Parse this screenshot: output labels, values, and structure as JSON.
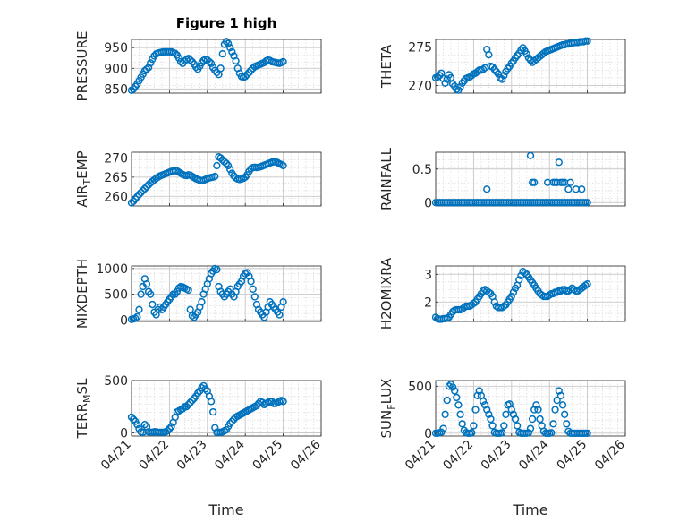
{
  "chart_data": [
    {
      "type": "scatter",
      "title": "Figure 1 high",
      "ylabel": "PRESSURE",
      "xlim": [
        0,
        5
      ],
      "ylim": [
        840,
        970
      ],
      "yticks": [
        850,
        900,
        950
      ],
      "x": [
        0.0,
        0.05,
        0.1,
        0.15,
        0.2,
        0.25,
        0.3,
        0.35,
        0.4,
        0.45,
        0.5,
        0.55,
        0.6,
        0.65,
        0.7,
        0.75,
        0.8,
        0.85,
        0.9,
        0.95,
        1.0,
        1.05,
        1.1,
        1.15,
        1.2,
        1.25,
        1.3,
        1.35,
        1.4,
        1.45,
        1.5,
        1.55,
        1.6,
        1.65,
        1.7,
        1.75,
        1.8,
        1.85,
        1.9,
        1.95,
        2.0,
        2.05,
        2.1,
        2.15,
        2.2,
        2.25,
        2.3,
        2.35,
        2.4,
        2.45,
        2.5,
        2.55,
        2.6,
        2.65,
        2.7,
        2.75,
        2.8,
        2.85,
        2.9,
        2.95,
        3.0,
        3.05,
        3.1,
        3.15,
        3.2,
        3.25,
        3.3,
        3.35,
        3.4,
        3.45,
        3.5,
        3.55,
        3.6,
        3.65,
        3.7,
        3.75,
        3.8,
        3.85,
        3.9,
        3.95,
        4.0
      ],
      "y": [
        847,
        850,
        856,
        862,
        870,
        878,
        886,
        894,
        898,
        902,
        913,
        922,
        930,
        935,
        937,
        938,
        939,
        940,
        940,
        940,
        940,
        940,
        938,
        936,
        932,
        925,
        916,
        912,
        918,
        921,
        924,
        920,
        916,
        910,
        903,
        898,
        905,
        913,
        919,
        922,
        920,
        916,
        912,
        902,
        895,
        890,
        885,
        900,
        935,
        958,
        965,
        960,
        950,
        940,
        930,
        918,
        900,
        888,
        880,
        878,
        880,
        885,
        890,
        895,
        900,
        904,
        906,
        908,
        910,
        912,
        914,
        918,
        920,
        919,
        916,
        915,
        914,
        913,
        912,
        914,
        916
      ]
    },
    {
      "type": "scatter",
      "ylabel": "THETA",
      "xlim": [
        0,
        5
      ],
      "ylim": [
        269,
        276
      ],
      "yticks": [
        270,
        275
      ],
      "x": [
        0.0,
        0.05,
        0.1,
        0.15,
        0.2,
        0.25,
        0.3,
        0.35,
        0.4,
        0.45,
        0.5,
        0.55,
        0.6,
        0.65,
        0.7,
        0.75,
        0.8,
        0.85,
        0.9,
        0.95,
        1.0,
        1.05,
        1.1,
        1.15,
        1.2,
        1.25,
        1.3,
        1.35,
        1.4,
        1.45,
        1.5,
        1.55,
        1.6,
        1.65,
        1.7,
        1.75,
        1.8,
        1.85,
        1.9,
        1.95,
        2.0,
        2.05,
        2.1,
        2.15,
        2.2,
        2.25,
        2.3,
        2.35,
        2.4,
        2.45,
        2.5,
        2.55,
        2.6,
        2.65,
        2.7,
        2.75,
        2.8,
        2.85,
        2.9,
        2.95,
        3.0,
        3.05,
        3.1,
        3.15,
        3.2,
        3.25,
        3.3,
        3.35,
        3.4,
        3.45,
        3.5,
        3.55,
        3.6,
        3.65,
        3.7,
        3.75,
        3.8,
        3.85,
        3.9,
        3.95,
        4.0
      ],
      "y": [
        271.0,
        271.1,
        271.3,
        271.6,
        270.9,
        270.3,
        270.8,
        271.4,
        271.0,
        270.2,
        269.9,
        269.5,
        269.4,
        269.8,
        270.3,
        270.6,
        270.9,
        271.0,
        271.1,
        271.3,
        271.5,
        271.6,
        271.8,
        272.0,
        272.0,
        272.1,
        272.3,
        274.7,
        274.0,
        272.5,
        272.4,
        272.1,
        271.8,
        271.5,
        271.0,
        270.8,
        271.3,
        271.8,
        272.2,
        272.5,
        272.9,
        273.2,
        273.6,
        273.9,
        274.2,
        274.6,
        274.9,
        274.5,
        274.1,
        273.6,
        273.3,
        273.0,
        273.2,
        273.4,
        273.6,
        273.8,
        274.0,
        274.2,
        274.4,
        274.5,
        274.6,
        274.7,
        274.8,
        274.9,
        275.0,
        275.1,
        275.2,
        275.3,
        275.3,
        275.4,
        275.4,
        275.5,
        275.5,
        275.6,
        275.6,
        275.6,
        275.7,
        275.7,
        275.7,
        275.8,
        275.8
      ]
    },
    {
      "type": "scatter",
      "ylabel": "AIR_TEMP",
      "xlim": [
        0,
        5
      ],
      "ylim": [
        257.5,
        271.5
      ],
      "yticks": [
        260,
        265,
        270
      ],
      "x": [
        0.0,
        0.05,
        0.1,
        0.15,
        0.2,
        0.25,
        0.3,
        0.35,
        0.4,
        0.45,
        0.5,
        0.55,
        0.6,
        0.65,
        0.7,
        0.75,
        0.8,
        0.85,
        0.9,
        0.95,
        1.0,
        1.05,
        1.1,
        1.15,
        1.2,
        1.25,
        1.3,
        1.35,
        1.4,
        1.45,
        1.5,
        1.55,
        1.6,
        1.65,
        1.7,
        1.75,
        1.8,
        1.85,
        1.9,
        1.95,
        2.0,
        2.05,
        2.1,
        2.15,
        2.2,
        2.25,
        2.3,
        2.35,
        2.4,
        2.45,
        2.5,
        2.55,
        2.6,
        2.65,
        2.7,
        2.75,
        2.8,
        2.85,
        2.9,
        2.95,
        3.0,
        3.05,
        3.1,
        3.15,
        3.2,
        3.25,
        3.3,
        3.35,
        3.4,
        3.45,
        3.5,
        3.55,
        3.6,
        3.65,
        3.7,
        3.75,
        3.8,
        3.85,
        3.9,
        3.95,
        4.0
      ],
      "y": [
        258.3,
        258.7,
        259.3,
        259.9,
        260.5,
        261.0,
        261.5,
        262.0,
        262.5,
        263.0,
        263.5,
        263.9,
        264.3,
        264.7,
        265.0,
        265.3,
        265.5,
        265.7,
        265.9,
        266.1,
        266.3,
        266.5,
        266.6,
        266.7,
        266.6,
        266.3,
        266.0,
        265.7,
        265.5,
        265.4,
        265.6,
        265.5,
        265.2,
        264.9,
        264.6,
        264.4,
        264.2,
        264.1,
        264.2,
        264.4,
        264.6,
        264.8,
        264.9,
        265.0,
        265.2,
        268.0,
        270.3,
        270.0,
        269.5,
        269.0,
        268.6,
        268.0,
        267.0,
        266.0,
        265.3,
        264.8,
        264.5,
        264.4,
        264.5,
        264.7,
        265.0,
        265.6,
        266.5,
        267.2,
        267.5,
        267.6,
        267.5,
        267.6,
        267.7,
        267.9,
        268.1,
        268.3,
        268.5,
        268.7,
        268.9,
        269.0,
        269.0,
        268.8,
        268.5,
        268.3,
        268.0
      ]
    },
    {
      "type": "scatter",
      "ylabel": "RAINFALL",
      "xlim": [
        0,
        5
      ],
      "ylim": [
        -0.05,
        0.75
      ],
      "yticks": [
        0,
        0.5
      ],
      "zeros_x": [
        0.0,
        0.05,
        0.1,
        0.15,
        0.2,
        0.25,
        0.3,
        0.35,
        0.4,
        0.45,
        0.5,
        0.55,
        0.6,
        0.65,
        0.7,
        0.75,
        0.8,
        0.85,
        0.9,
        0.95,
        1.0,
        1.05,
        1.1,
        1.15,
        1.2,
        1.25,
        1.3,
        1.35,
        1.4,
        1.45,
        1.5,
        1.55,
        1.6,
        1.65,
        1.7,
        1.75,
        1.8,
        1.85,
        1.9,
        1.95,
        2.0,
        2.05,
        2.1,
        2.15,
        2.2,
        2.25,
        2.3,
        2.35,
        2.4,
        2.45,
        2.5,
        2.55,
        2.6,
        2.65,
        2.7,
        2.75,
        2.8,
        2.85,
        2.9,
        2.95,
        3.0,
        3.05,
        3.1,
        3.15,
        3.2,
        3.25,
        3.3,
        3.35,
        3.4,
        3.45,
        3.5,
        3.55,
        3.6,
        3.65,
        3.7,
        3.75,
        3.8,
        3.85,
        3.9,
        3.95,
        4.0
      ],
      "x": [
        1.35,
        2.5,
        2.55,
        2.6,
        2.95,
        3.1,
        3.15,
        3.2,
        3.25,
        3.3,
        3.35,
        3.4,
        3.5,
        3.55,
        3.7,
        3.85
      ],
      "y": [
        0.2,
        0.7,
        0.3,
        0.3,
        0.3,
        0.3,
        0.3,
        0.3,
        0.6,
        0.3,
        0.3,
        0.3,
        0.2,
        0.3,
        0.2,
        0.2
      ]
    },
    {
      "type": "scatter",
      "ylabel": "MIXDEPTH",
      "xlim": [
        0,
        5
      ],
      "ylim": [
        -30,
        1050
      ],
      "yticks": [
        0,
        500,
        1000
      ],
      "x": [
        0.0,
        0.05,
        0.1,
        0.15,
        0.2,
        0.25,
        0.3,
        0.35,
        0.4,
        0.45,
        0.5,
        0.55,
        0.6,
        0.65,
        0.7,
        0.75,
        0.8,
        0.85,
        0.9,
        0.95,
        1.0,
        1.05,
        1.1,
        1.15,
        1.2,
        1.25,
        1.3,
        1.35,
        1.4,
        1.45,
        1.5,
        1.55,
        1.6,
        1.65,
        1.7,
        1.75,
        1.8,
        1.85,
        1.9,
        1.95,
        2.0,
        2.05,
        2.1,
        2.15,
        2.2,
        2.25,
        2.3,
        2.35,
        2.4,
        2.45,
        2.5,
        2.55,
        2.6,
        2.65,
        2.7,
        2.75,
        2.8,
        2.85,
        2.9,
        2.95,
        3.0,
        3.05,
        3.1,
        3.15,
        3.2,
        3.25,
        3.3,
        3.35,
        3.4,
        3.45,
        3.5,
        3.55,
        3.6,
        3.65,
        3.7,
        3.75,
        3.8,
        3.85,
        3.9,
        3.95,
        4.0
      ],
      "y": [
        10,
        20,
        30,
        60,
        200,
        500,
        650,
        800,
        700,
        550,
        500,
        300,
        150,
        100,
        200,
        250,
        200,
        250,
        300,
        350,
        400,
        450,
        500,
        500,
        550,
        620,
        650,
        640,
        620,
        600,
        580,
        200,
        80,
        50,
        100,
        150,
        250,
        350,
        500,
        600,
        700,
        800,
        900,
        950,
        1000,
        980,
        650,
        550,
        500,
        450,
        500,
        550,
        600,
        500,
        450,
        550,
        650,
        700,
        750,
        850,
        900,
        920,
        850,
        750,
        600,
        450,
        300,
        200,
        150,
        100,
        50,
        150,
        250,
        350,
        300,
        250,
        200,
        150,
        100,
        250,
        350
      ]
    },
    {
      "type": "scatter",
      "ylabel": "H2OMIXRA",
      "xlim": [
        0,
        5
      ],
      "ylim": [
        1.3,
        3.3
      ],
      "yticks": [
        2,
        3
      ],
      "x": [
        0.0,
        0.05,
        0.1,
        0.15,
        0.2,
        0.25,
        0.3,
        0.35,
        0.4,
        0.45,
        0.5,
        0.55,
        0.6,
        0.65,
        0.7,
        0.75,
        0.8,
        0.85,
        0.9,
        0.95,
        1.0,
        1.05,
        1.1,
        1.15,
        1.2,
        1.25,
        1.3,
        1.35,
        1.4,
        1.45,
        1.5,
        1.55,
        1.6,
        1.65,
        1.7,
        1.75,
        1.8,
        1.85,
        1.9,
        1.95,
        2.0,
        2.05,
        2.1,
        2.15,
        2.2,
        2.25,
        2.3,
        2.35,
        2.4,
        2.45,
        2.5,
        2.55,
        2.6,
        2.65,
        2.7,
        2.75,
        2.8,
        2.85,
        2.9,
        2.95,
        3.0,
        3.05,
        3.1,
        3.15,
        3.2,
        3.25,
        3.3,
        3.35,
        3.4,
        3.45,
        3.5,
        3.55,
        3.6,
        3.65,
        3.7,
        3.75,
        3.8,
        3.85,
        3.9,
        3.95,
        4.0
      ],
      "y": [
        1.45,
        1.4,
        1.38,
        1.38,
        1.4,
        1.4,
        1.42,
        1.45,
        1.55,
        1.65,
        1.7,
        1.72,
        1.72,
        1.72,
        1.75,
        1.8,
        1.85,
        1.85,
        1.85,
        1.9,
        1.95,
        2.0,
        2.1,
        2.2,
        2.3,
        2.4,
        2.45,
        2.4,
        2.35,
        2.3,
        2.2,
        2.0,
        1.85,
        1.8,
        1.8,
        1.8,
        1.85,
        1.9,
        2.0,
        2.1,
        2.2,
        2.35,
        2.5,
        2.6,
        2.8,
        2.95,
        3.1,
        3.05,
        3.0,
        2.9,
        2.8,
        2.7,
        2.6,
        2.5,
        2.4,
        2.3,
        2.25,
        2.2,
        2.2,
        2.2,
        2.25,
        2.3,
        2.3,
        2.35,
        2.35,
        2.4,
        2.4,
        2.45,
        2.45,
        2.4,
        2.4,
        2.45,
        2.5,
        2.45,
        2.4,
        2.4,
        2.45,
        2.5,
        2.55,
        2.6,
        2.65
      ]
    },
    {
      "type": "scatter",
      "ylabel": "TERR_MSL",
      "xlim": [
        0,
        5
      ],
      "ylim": [
        -30,
        500
      ],
      "yticks": [
        0,
        500
      ],
      "xlabel": "Time",
      "xticks": [
        "04/21",
        "04/22",
        "04/23",
        "04/24",
        "04/25",
        "04/26"
      ],
      "x": [
        0.0,
        0.05,
        0.1,
        0.15,
        0.2,
        0.25,
        0.3,
        0.35,
        0.4,
        0.45,
        0.5,
        0.55,
        0.6,
        0.65,
        0.7,
        0.75,
        0.8,
        0.85,
        0.9,
        0.95,
        1.0,
        1.05,
        1.1,
        1.15,
        1.2,
        1.25,
        1.3,
        1.35,
        1.4,
        1.45,
        1.5,
        1.55,
        1.6,
        1.65,
        1.7,
        1.75,
        1.8,
        1.85,
        1.9,
        1.95,
        2.0,
        2.05,
        2.1,
        2.15,
        2.2,
        2.25,
        2.3,
        2.35,
        2.4,
        2.45,
        2.5,
        2.55,
        2.6,
        2.65,
        2.7,
        2.75,
        2.8,
        2.85,
        2.9,
        2.95,
        3.0,
        3.05,
        3.1,
        3.15,
        3.2,
        3.25,
        3.3,
        3.35,
        3.4,
        3.45,
        3.5,
        3.55,
        3.6,
        3.65,
        3.7,
        3.75,
        3.8,
        3.85,
        3.9,
        3.95,
        4.0
      ],
      "y": [
        150,
        130,
        110,
        80,
        40,
        10,
        5,
        80,
        60,
        10,
        5,
        5,
        10,
        10,
        5,
        5,
        5,
        5,
        10,
        20,
        40,
        60,
        100,
        150,
        200,
        210,
        220,
        230,
        250,
        250,
        270,
        290,
        310,
        330,
        350,
        380,
        400,
        430,
        450,
        420,
        400,
        350,
        300,
        200,
        50,
        5,
        5,
        5,
        10,
        20,
        30,
        60,
        90,
        110,
        130,
        150,
        160,
        170,
        180,
        190,
        200,
        210,
        220,
        230,
        240,
        250,
        260,
        280,
        300,
        290,
        270,
        280,
        290,
        300,
        300,
        280,
        280,
        290,
        300,
        310,
        300
      ]
    },
    {
      "type": "scatter",
      "ylabel": "SUN_FLUX",
      "xlim": [
        0,
        5
      ],
      "ylim": [
        -30,
        560
      ],
      "yticks": [
        0,
        500
      ],
      "xlabel": "Time",
      "xticks": [
        "04/21",
        "04/22",
        "04/23",
        "04/24",
        "04/25",
        "04/26"
      ],
      "x": [
        0.0,
        0.05,
        0.1,
        0.15,
        0.2,
        0.25,
        0.3,
        0.35,
        0.4,
        0.45,
        0.5,
        0.55,
        0.6,
        0.65,
        0.7,
        0.75,
        0.8,
        0.85,
        0.9,
        0.95,
        1.0,
        1.05,
        1.1,
        1.15,
        1.2,
        1.25,
        1.3,
        1.35,
        1.4,
        1.45,
        1.5,
        1.55,
        1.6,
        1.65,
        1.7,
        1.75,
        1.8,
        1.85,
        1.9,
        1.95,
        2.0,
        2.05,
        2.1,
        2.15,
        2.2,
        2.25,
        2.3,
        2.35,
        2.4,
        2.45,
        2.5,
        2.55,
        2.6,
        2.65,
        2.7,
        2.75,
        2.8,
        2.85,
        2.9,
        2.95,
        3.0,
        3.05,
        3.1,
        3.15,
        3.2,
        3.25,
        3.3,
        3.35,
        3.4,
        3.45,
        3.5,
        3.55,
        3.6,
        3.65,
        3.7,
        3.75,
        3.8,
        3.85,
        3.9,
        3.95,
        4.0
      ],
      "y": [
        0,
        0,
        5,
        10,
        50,
        200,
        350,
        500,
        520,
        490,
        450,
        380,
        300,
        200,
        100,
        30,
        5,
        0,
        0,
        5,
        80,
        250,
        400,
        450,
        400,
        340,
        300,
        250,
        200,
        150,
        80,
        10,
        0,
        0,
        0,
        5,
        80,
        200,
        300,
        310,
        250,
        200,
        150,
        80,
        10,
        0,
        0,
        0,
        0,
        5,
        50,
        150,
        250,
        300,
        250,
        150,
        80,
        20,
        0,
        0,
        0,
        5,
        100,
        250,
        350,
        450,
        400,
        300,
        200,
        100,
        20,
        0,
        0,
        0,
        0,
        0,
        0,
        0,
        0,
        0,
        0
      ]
    }
  ]
}
